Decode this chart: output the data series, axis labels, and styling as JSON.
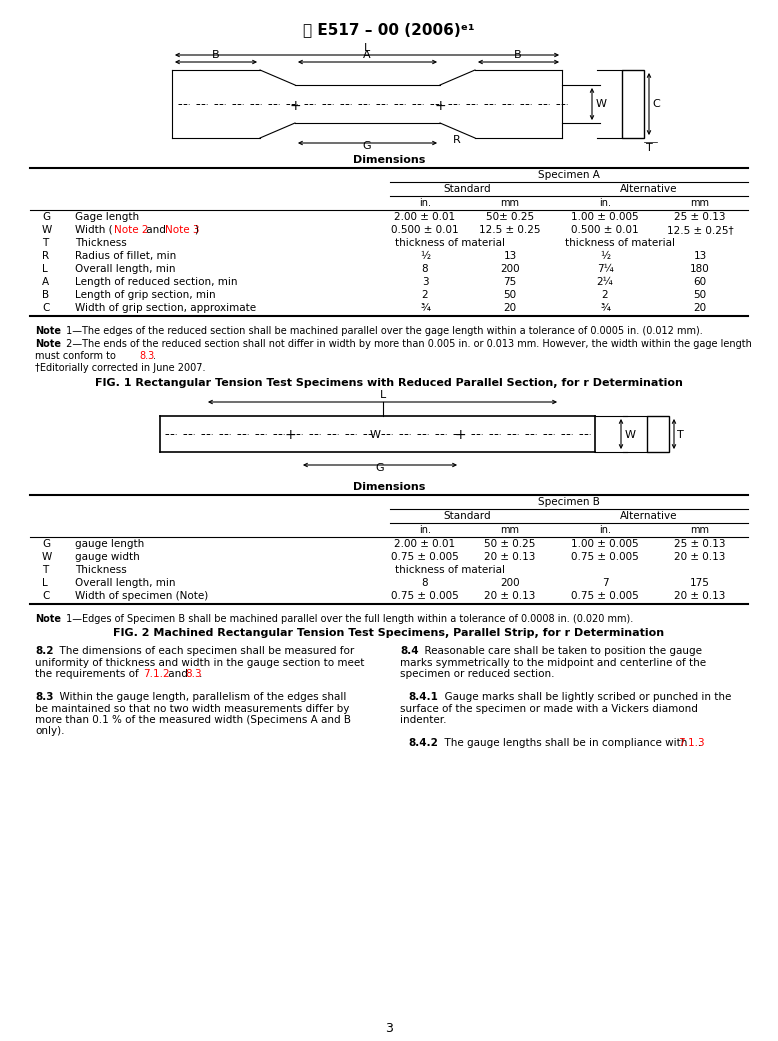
{
  "title": "E517 – 00 (2006)ᵉ¹",
  "bg_color": "#ffffff",
  "fig1_caption": "FIG. 1 Rectangular Tension Test Specimens with Reduced Parallel Section, for r Determination",
  "fig2_caption": "FIG. 2 Machined Rectangular Tension Test Specimens, Parallel Strip, for r Determination",
  "table1_header": "Dimensions",
  "table1_specimenA": "Specimen A",
  "table1_standard": "Standard",
  "table1_alternative": "Alternative",
  "table1_in": "in.",
  "table1_mm": "mm",
  "table1_rows": [
    [
      "G",
      "Gage length",
      "2.00 ± 0.01",
      "50± 0.25",
      "1.00 ± 0.005",
      "25 ± 0.13"
    ],
    [
      "W",
      "Width (Note 2 and Note 3)",
      "0.500 ± 0.01",
      "12.5 ± 0.25",
      "0.500 ± 0.01",
      "12.5 ± 0.25†"
    ],
    [
      "T",
      "Thickness",
      "thickness of material",
      "",
      "thickness of material",
      ""
    ],
    [
      "R",
      "Radius of fillet, min",
      "½",
      "13",
      "½",
      "13"
    ],
    [
      "L",
      "Overall length, min",
      "8",
      "200",
      "7¼",
      "180"
    ],
    [
      "A",
      "Length of reduced section, min",
      "3",
      "75",
      "2¼",
      "60"
    ],
    [
      "B",
      "Length of grip section, min",
      "2",
      "50",
      "2",
      "50"
    ],
    [
      "C",
      "Width of grip section, approximate",
      "¾",
      "20",
      "¾",
      "20"
    ]
  ],
  "table1_note1": " 1—The edges of the reduced section shall be machined parallel over the gage length within a tolerance of 0.0005 in. (0.012 mm).",
  "table1_note2a": " 2—The ends of the reduced section shall not differ in width by more than 0.005 in. or 0.013 mm. However, the width within the gage length",
  "table1_note2b": "must conform to ",
  "table1_note2b_link": "8.3",
  "table1_note2b_end": ".",
  "table1_footnote": "†Editorially corrected in June 2007.",
  "table2_header": "Dimensions",
  "table2_specimenB": "Specimen B",
  "table2_standard": "Standard",
  "table2_alternative": "Alternative",
  "table2_in": "in.",
  "table2_mm": "mm",
  "table2_rows": [
    [
      "G",
      "gauge length",
      "2.00 ± 0.01",
      "50 ± 0.25",
      "1.00 ± 0.005",
      "25 ± 0.13"
    ],
    [
      "W",
      "gauge width",
      "0.75 ± 0.005",
      "20 ± 0.13",
      "0.75 ± 0.005",
      "20 ± 0.13"
    ],
    [
      "T",
      "Thickness",
      "thickness of material",
      "",
      "",
      ""
    ],
    [
      "L",
      "Overall length, min",
      "8",
      "200",
      "7",
      "175"
    ],
    [
      "C",
      "Width of specimen (Note)",
      "0.75 ± 0.005",
      "20 ± 0.13",
      "0.75 ± 0.005",
      "20 ± 0.13"
    ]
  ],
  "table2_note1": " 1—Edges of Specimen B shall be machined parallel over the full length within a tolerance of 0.0008 in. (0.020 mm).",
  "body_82_label": "8.2",
  "body_82_line1": "  The dimensions of each specimen shall be measured for",
  "body_82_line2": "uniformity of thickness and width in the gauge section to meet",
  "body_82_line3a": "the requirements of ",
  "body_82_line3b": "7.1.2",
  "body_82_line3c": " and ",
  "body_82_line3d": "8.3",
  "body_82_line3e": ".",
  "body_83_label": "8.3",
  "body_83_line1": "  Within the gauge length, parallelism of the edges shall",
  "body_83_line2": "be maintained so that no two width measurements differ by",
  "body_83_line3": "more than 0.1 % of the measured width (Specimens A and B",
  "body_83_line4": "only).",
  "body_84_label": "8.4",
  "body_84_line1": "  Reasonable care shall be taken to position the gauge",
  "body_84_line2": "marks symmetrically to the midpoint and centerline of the",
  "body_84_line3": "specimen or reduced section.",
  "body_841_label": "8.4.1",
  "body_841_line1": "  Gauge marks shall be lightly scribed or punched in the",
  "body_841_line2": "surface of the specimen or made with a Vickers diamond",
  "body_841_line3": "indenter.",
  "body_842_label": "8.4.2",
  "body_842_line1": "  The gauge lengths shall be in compliance with ",
  "body_842_link": "7.1.3",
  "body_842_end": ".",
  "page_number": "3"
}
